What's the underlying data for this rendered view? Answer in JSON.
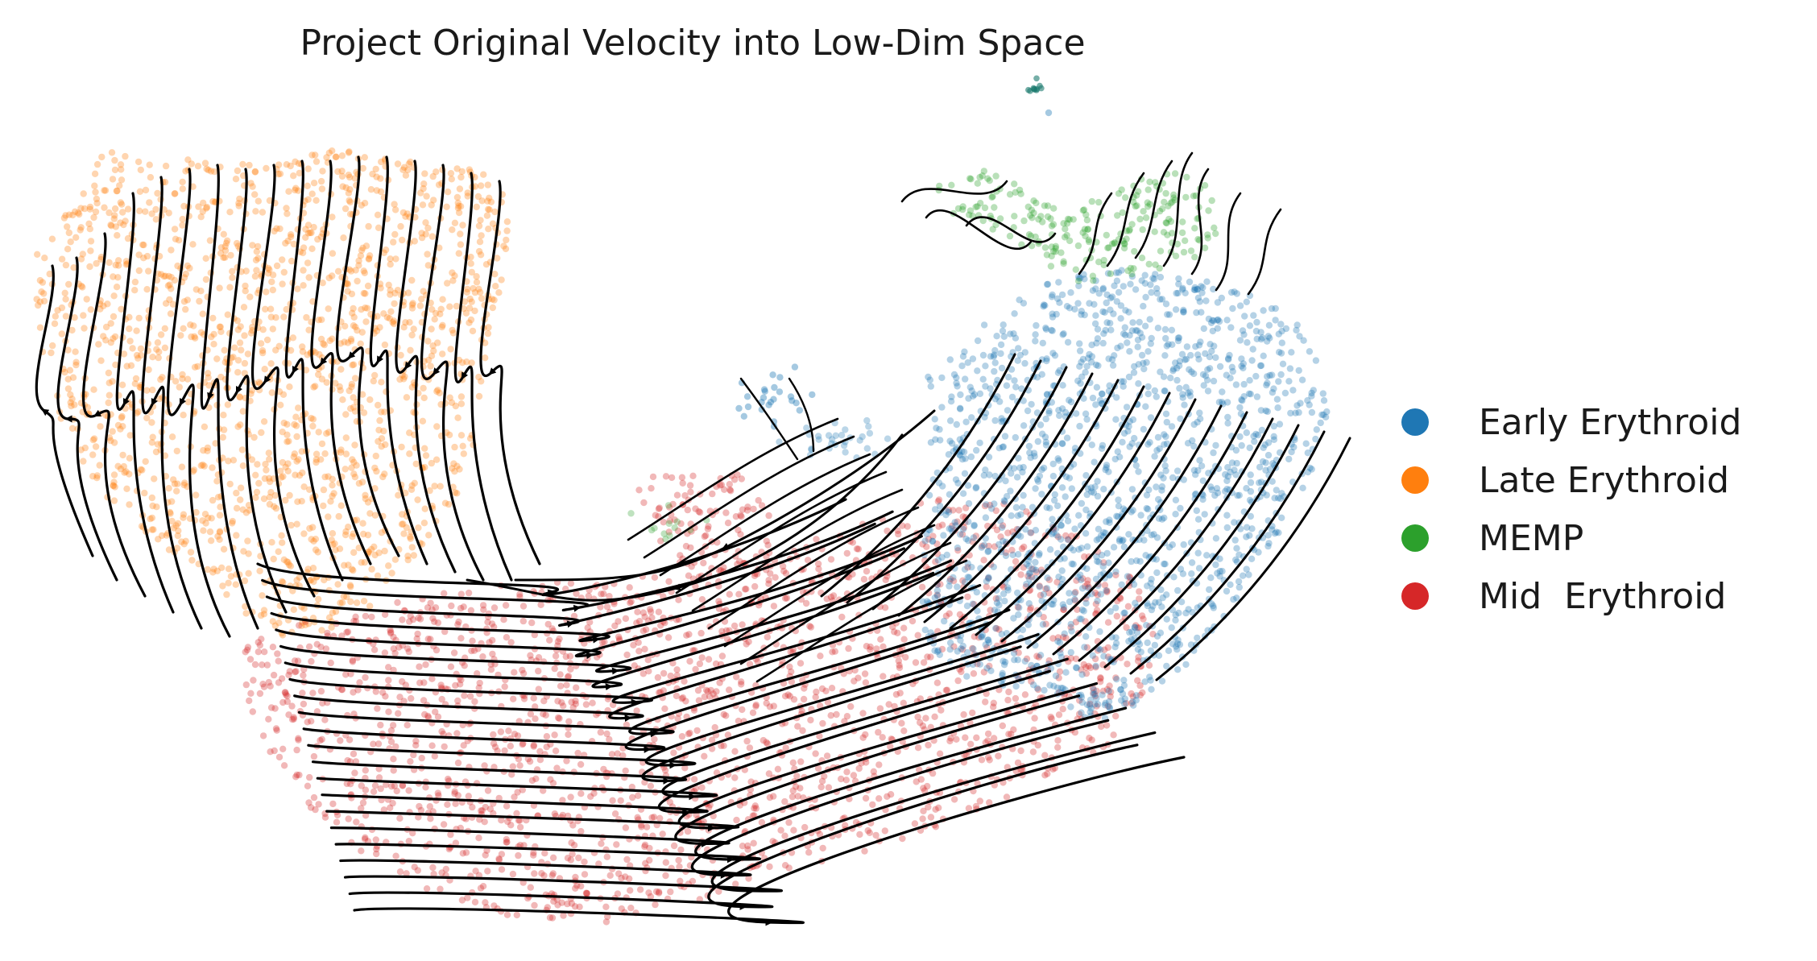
{
  "chart_data": {
    "type": "scatter",
    "title": "Project Original Velocity into Low-Dim Space",
    "xlabel": "",
    "ylabel": "",
    "axes_visible": false,
    "grid": false,
    "overlay": "velocity streamlines with arrowheads",
    "legend_placement": "right",
    "series": [
      {
        "name": "Early Erythroid",
        "color": "#1f77b4"
      },
      {
        "name": "Late Erythroid",
        "color": "#ff7f0e"
      },
      {
        "name": "MEMP",
        "color": "#2ca02c"
      },
      {
        "name": "Mid  Erythroid",
        "color": "#d62728"
      }
    ]
  }
}
